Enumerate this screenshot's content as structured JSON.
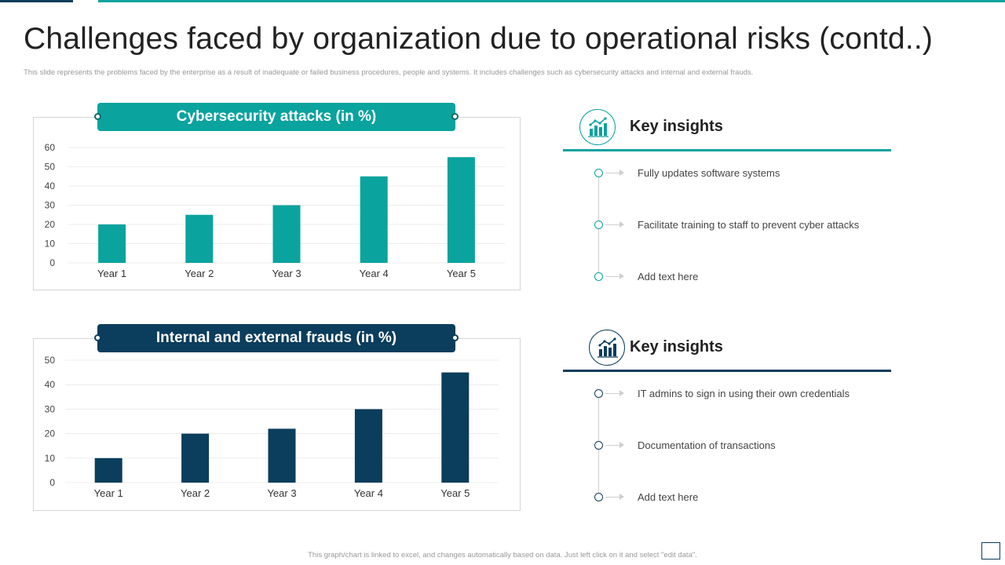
{
  "title": "Challenges faced by organization due to operational risks (contd..)",
  "subtitle": "This slide represents the problems faced by the enterprise as a result of inadequate or failed business procedures, people and systems. It includes challenges such as cybersecurity attacks and internal and external frauds.",
  "footnote": "This graph/chart is linked to excel, and changes automatically based on data. Just left click on it and select \"edit data\".",
  "colors": {
    "teal": "#0aa39e",
    "navy": "#0b3d5c"
  },
  "chart_data": [
    {
      "type": "bar",
      "title": "Cybersecurity attacks (in %)",
      "categories": [
        "Year 1",
        "Year 2",
        "Year 3",
        "Year 4",
        "Year 5"
      ],
      "values": [
        20,
        25,
        30,
        45,
        55
      ],
      "yticks": [
        0,
        10,
        20,
        30,
        40,
        50,
        60
      ],
      "ylim": [
        0,
        60
      ],
      "xlabel": "",
      "ylabel": "",
      "color": "#0aa39e"
    },
    {
      "type": "bar",
      "title": "Internal and external frauds (in %)",
      "categories": [
        "Year 1",
        "Year 2",
        "Year 3",
        "Year 4",
        "Year 5"
      ],
      "values": [
        10,
        20,
        22,
        30,
        45
      ],
      "yticks": [
        0,
        10,
        20,
        30,
        40,
        50
      ],
      "ylim": [
        0,
        50
      ],
      "xlabel": "",
      "ylabel": "",
      "color": "#0b3d5c"
    }
  ],
  "insights": [
    {
      "title": "Key insights",
      "icon": "chart-growth-icon",
      "items": [
        "Fully updates software  systems",
        "Facilitate training to staff to prevent  cyber attacks",
        "Add text here"
      ]
    },
    {
      "title": "Key insights",
      "icon": "chart-growth-icon",
      "items": [
        "IT admins to sign in using their own credentials",
        "Documentation  of transactions",
        "Add text here"
      ]
    }
  ]
}
